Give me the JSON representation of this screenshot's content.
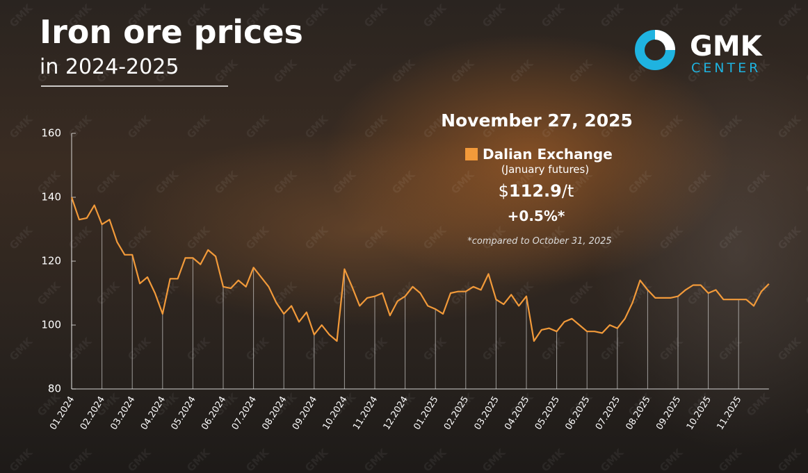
{
  "header": {
    "title": "Iron ore prices",
    "subtitle": "in 2024-2025"
  },
  "logo": {
    "name": "GMK",
    "tagline": "CENTER",
    "watermark": "GMK"
  },
  "callout": {
    "date": "November 27, 2025",
    "note": "(January futures)",
    "price_prefix": "$",
    "price": 112.9,
    "price_suffix": "/t",
    "change": "+0.5%*",
    "footnote": "*compared to October 31, 2025"
  },
  "chart_data": {
    "type": "line",
    "categories": [
      "01.2024",
      null,
      null,
      null,
      "02.2024",
      null,
      null,
      null,
      "03.2024",
      null,
      null,
      null,
      "04.2024",
      null,
      null,
      null,
      "05.2024",
      null,
      null,
      null,
      "06.2024",
      null,
      null,
      null,
      "07.2024",
      null,
      null,
      null,
      "08.2024",
      null,
      null,
      null,
      "09.2024",
      null,
      null,
      null,
      "10.2024",
      null,
      null,
      null,
      "11.2024",
      null,
      null,
      null,
      "12.2024",
      null,
      null,
      null,
      "01.2025",
      null,
      null,
      null,
      "02.2025",
      null,
      null,
      null,
      "03.2025",
      null,
      null,
      null,
      "04.2025",
      null,
      null,
      null,
      "05.2025",
      null,
      null,
      null,
      "06.2025",
      null,
      null,
      null,
      "07.2025",
      null,
      null,
      null,
      "08.2025",
      null,
      null,
      null,
      "09.2025",
      null,
      null,
      null,
      "10.2025",
      null,
      null,
      null,
      "11.2025",
      null,
      null,
      null,
      null
    ],
    "series": [
      {
        "name": "Dalian Exchange",
        "color": "#f29a3a",
        "values": [
          140,
          133,
          133.5,
          137.5,
          131.5,
          133,
          126,
          122,
          122,
          113,
          115,
          110,
          103.5,
          114.5,
          114.5,
          121,
          121,
          119,
          123.5,
          121.5,
          112,
          111.5,
          114,
          112,
          118,
          115,
          112,
          107,
          103.5,
          106,
          101,
          104,
          97,
          100,
          97,
          95,
          117.5,
          112,
          106,
          108.5,
          109,
          110,
          103,
          107.5,
          109,
          112,
          110,
          106,
          105,
          103.5,
          110,
          110.5,
          110.5,
          112,
          111,
          116,
          108,
          106.5,
          109.5,
          106,
          109,
          95,
          98.5,
          99,
          98,
          101,
          102,
          100,
          98,
          98,
          97.5,
          100,
          99,
          102,
          107,
          114,
          111,
          108.5,
          108.5,
          108.5,
          109,
          111,
          112.5,
          112.5,
          110,
          111,
          108,
          108,
          108,
          108,
          106,
          110.5,
          112.9
        ]
      }
    ],
    "ylim": [
      80,
      160
    ],
    "yticks": [
      80,
      100,
      120,
      140,
      160
    ]
  }
}
